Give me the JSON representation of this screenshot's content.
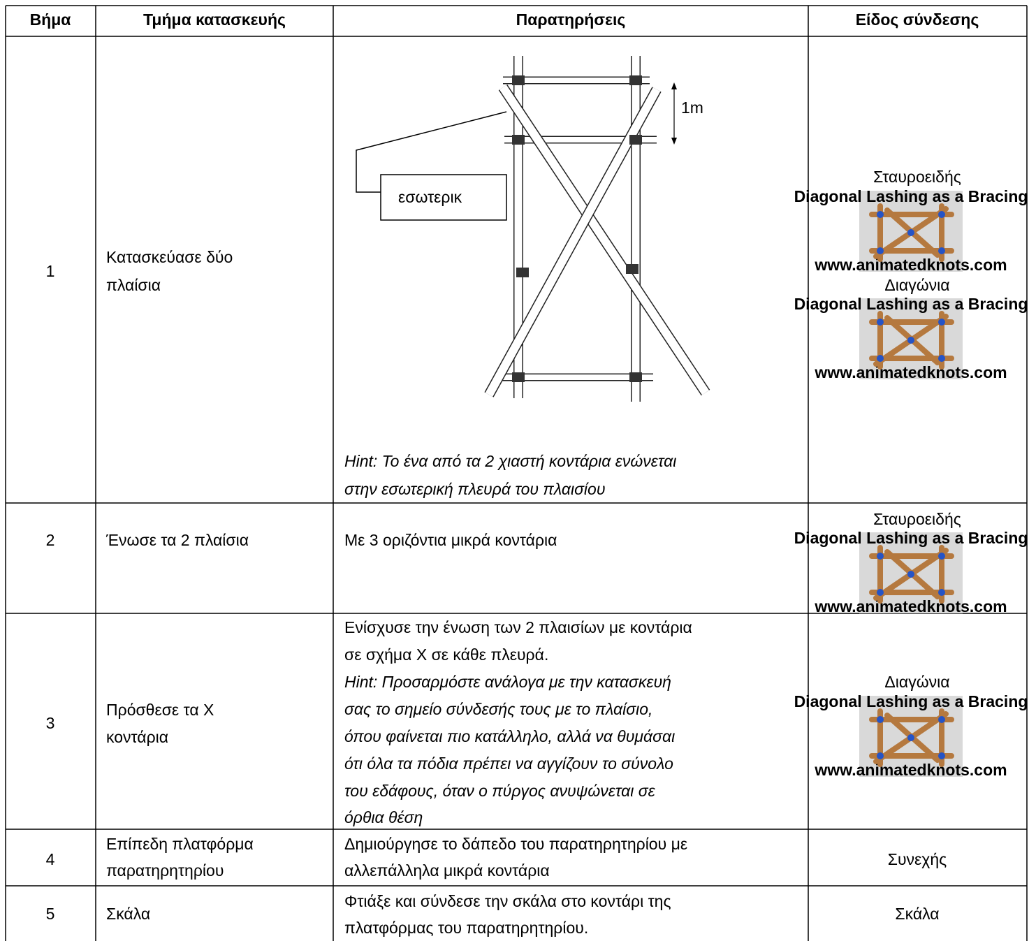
{
  "table": {
    "header": [
      "Βήμα",
      "Τμήμα κατασκευής",
      "Παρατηρήσεις",
      "Είδος σύνδεσης"
    ],
    "rows": [
      {
        "step": "1",
        "part": [
          "Κατασκεύασε δύο",
          "πλαίσια"
        ],
        "figure": {
          "scale_label": "1m",
          "callout": "εσωτερικ"
        },
        "notes": [
          {
            "text": "Hint: Το ένα από τα 2 χιαστή κοντάρια ενώνεται",
            "italic": true
          },
          {
            "text": "στην εσωτερική πλευρά του πλαισίου",
            "italic": true
          }
        ],
        "connections": [
          {
            "name": "Σταυροειδής",
            "image": {
              "title": "Diagonal Lashing as a Bracing",
              "credit": "www.animatedknots.com"
            }
          },
          {
            "name": "Διαγώνια",
            "image": {
              "title": "Diagonal Lashing as a Bracing",
              "credit": "www.animatedknots.com"
            }
          }
        ]
      },
      {
        "step": "2",
        "part": [
          "Ένωσε τα 2 πλαίσια"
        ],
        "notes": [
          {
            "text": "Με 3 οριζόντια μικρά κοντάρια",
            "italic": false
          }
        ],
        "connections": [
          {
            "name": "Σταυροειδής",
            "image": {
              "title": "Diagonal Lashing as a Bracing",
              "credit": "www.animatedknots.com"
            }
          }
        ]
      },
      {
        "step": "3",
        "part": [
          "Πρόσθεσε τα Χ",
          "κοντάρια"
        ],
        "notes": [
          {
            "text": "Ενίσχυσε την ένωση των 2 πλαισίων με κοντάρια",
            "italic": false
          },
          {
            "text": "σε σχήμα Χ σε κάθε πλευρά.",
            "italic": false
          },
          {
            "text": "Hint: Προσαρμόστε ανάλογα με την κατασκευή",
            "italic": true
          },
          {
            "text": "σας το σημείο σύνδεσής τους με το πλαίσιο,",
            "italic": true
          },
          {
            "text": "όπου φαίνεται πιο κατάλληλο, αλλά να θυμάσαι",
            "italic": true
          },
          {
            "text": "ότι όλα τα πόδια πρέπει να αγγίζουν το σύνολο",
            "italic": true
          },
          {
            "text": "του εδάφους, όταν ο πύργος ανυψώνεται σε",
            "italic": true
          },
          {
            "text": "όρθια θέση",
            "italic": true
          }
        ],
        "connections": [
          {
            "name": "Διαγώνια",
            "image": {
              "title": "Diagonal Lashing as a Bracing",
              "credit": "www.animatedknots.com"
            }
          }
        ]
      },
      {
        "step": "4",
        "part": [
          "Επίπεδη πλατφόρμα",
          "παρατηρητηρίου"
        ],
        "notes": [
          {
            "text": "Δημιούργησε το δάπεδο του παρατηρητηρίου με",
            "italic": false
          },
          {
            "text": "αλλεπάλληλα μικρά κοντάρια",
            "italic": false
          }
        ],
        "connections": [
          {
            "name": "Συνεχής"
          }
        ]
      },
      {
        "step": "5",
        "part": [
          "Σκάλα"
        ],
        "notes": [
          {
            "text": "Φτιάξε και σύνδεσε την σκάλα στο κοντάρι της",
            "italic": false
          },
          {
            "text": "πλατφόρμας του παρατηρητηρίου.",
            "italic": false
          }
        ],
        "connections": [
          {
            "name": "Σκάλα"
          }
        ]
      }
    ]
  }
}
